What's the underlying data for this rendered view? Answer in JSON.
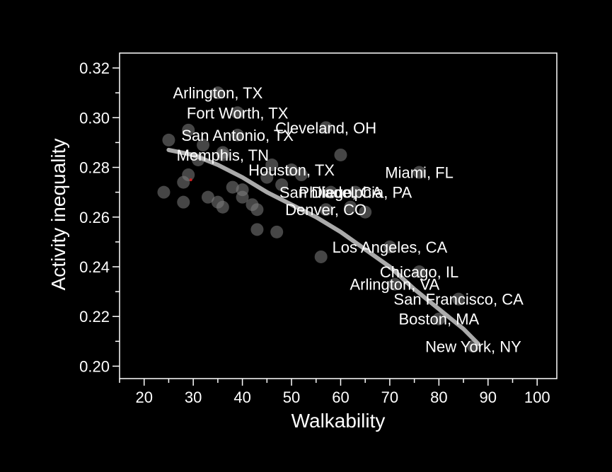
{
  "chart_data": {
    "type": "scatter",
    "xlabel": "Walkability",
    "ylabel": "Activity inequality",
    "xlim": [
      15,
      104
    ],
    "ylim": [
      0.195,
      0.326
    ],
    "x_ticks": [
      20,
      30,
      40,
      50,
      60,
      70,
      80,
      90,
      100
    ],
    "x_tick_labels": [
      "20",
      "30",
      "40",
      "50",
      "60",
      "70",
      "80",
      "90",
      "100"
    ],
    "y_ticks": [
      0.2,
      0.22,
      0.24,
      0.26,
      0.28,
      0.3,
      0.32
    ],
    "y_tick_labels": [
      "0.20",
      "0.22",
      "0.24",
      "0.26",
      "0.28",
      "0.30",
      "0.32"
    ],
    "grid": false,
    "labeled_points": [
      {
        "label": "Arlington, TX",
        "x": 35,
        "y": 0.31
      },
      {
        "label": "Fort Worth, TX",
        "x": 39,
        "y": 0.302
      },
      {
        "label": "Cleveland, OH",
        "x": 57,
        "y": 0.296
      },
      {
        "label": "San Antonio, TX",
        "x": 39,
        "y": 0.293
      },
      {
        "label": "Memphis, TN",
        "x": 36,
        "y": 0.285
      },
      {
        "label": "Houston, TX",
        "x": 50,
        "y": 0.279
      },
      {
        "label": "Miami, FL",
        "x": 76,
        "y": 0.278
      },
      {
        "label": "San Diego, CA",
        "x": 58,
        "y": 0.27
      },
      {
        "label": "Philadelphia, PA",
        "x": 63,
        "y": 0.27
      },
      {
        "label": "Denver, CO",
        "x": 57,
        "y": 0.263
      },
      {
        "label": "Los Angeles, CA",
        "x": 70,
        "y": 0.248
      },
      {
        "label": "Chicago, IL",
        "x": 76,
        "y": 0.238
      },
      {
        "label": "Arlington, VA",
        "x": 71,
        "y": 0.233
      },
      {
        "label": "San Francisco, CA",
        "x": 84,
        "y": 0.227
      },
      {
        "label": "Boston, MA",
        "x": 80,
        "y": 0.219
      },
      {
        "label": "New York, NY",
        "x": 87,
        "y": 0.208
      }
    ],
    "unlabeled_points": [
      {
        "x": 25,
        "y": 0.291
      },
      {
        "x": 29,
        "y": 0.295
      },
      {
        "x": 32,
        "y": 0.289
      },
      {
        "x": 24,
        "y": 0.27
      },
      {
        "x": 28,
        "y": 0.274
      },
      {
        "x": 29,
        "y": 0.277
      },
      {
        "x": 28,
        "y": 0.266
      },
      {
        "x": 31,
        "y": 0.283
      },
      {
        "x": 36,
        "y": 0.286
      },
      {
        "x": 33,
        "y": 0.268
      },
      {
        "x": 35,
        "y": 0.266
      },
      {
        "x": 36,
        "y": 0.264
      },
      {
        "x": 38,
        "y": 0.272
      },
      {
        "x": 40,
        "y": 0.271
      },
      {
        "x": 40,
        "y": 0.268
      },
      {
        "x": 42,
        "y": 0.265
      },
      {
        "x": 43,
        "y": 0.263
      },
      {
        "x": 43,
        "y": 0.255
      },
      {
        "x": 45,
        "y": 0.276
      },
      {
        "x": 46,
        "y": 0.281
      },
      {
        "x": 47,
        "y": 0.254
      },
      {
        "x": 48,
        "y": 0.273
      },
      {
        "x": 52,
        "y": 0.277
      },
      {
        "x": 56,
        "y": 0.244
      },
      {
        "x": 60,
        "y": 0.285
      },
      {
        "x": 62,
        "y": 0.264
      },
      {
        "x": 65,
        "y": 0.262
      }
    ],
    "highlight_point": {
      "x": 29.5,
      "y": 0.275
    },
    "trend_line": {
      "x": [
        25,
        30,
        35,
        40,
        45,
        50,
        55,
        60,
        65,
        70,
        75,
        80,
        85,
        88
      ],
      "y": [
        0.287,
        0.285,
        0.281,
        0.276,
        0.27,
        0.265,
        0.26,
        0.254,
        0.247,
        0.24,
        0.231,
        0.223,
        0.215,
        0.209
      ]
    },
    "colors": {
      "background": "#000000",
      "foreground": "#ffffff",
      "point": "#808080",
      "trend": "#bdbdbd",
      "highlight": "#cc2222"
    }
  }
}
